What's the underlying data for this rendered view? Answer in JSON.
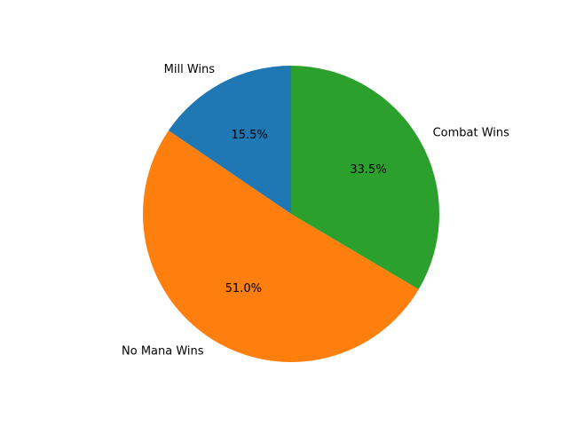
{
  "chart_data": {
    "type": "pie",
    "title": "",
    "start_angle_deg": 90,
    "direction": "counterclockwise",
    "slices": [
      {
        "label": "Mill Wins",
        "percent_label": "15.5%",
        "value": 15.5,
        "color": "#1f77b4"
      },
      {
        "label": "No Mana Wins",
        "percent_label": "51.0%",
        "value": 51.0,
        "color": "#ff7f0e"
      },
      {
        "label": "Combat Wins",
        "percent_label": "33.5%",
        "value": 33.5,
        "color": "#2ca02c"
      }
    ]
  }
}
